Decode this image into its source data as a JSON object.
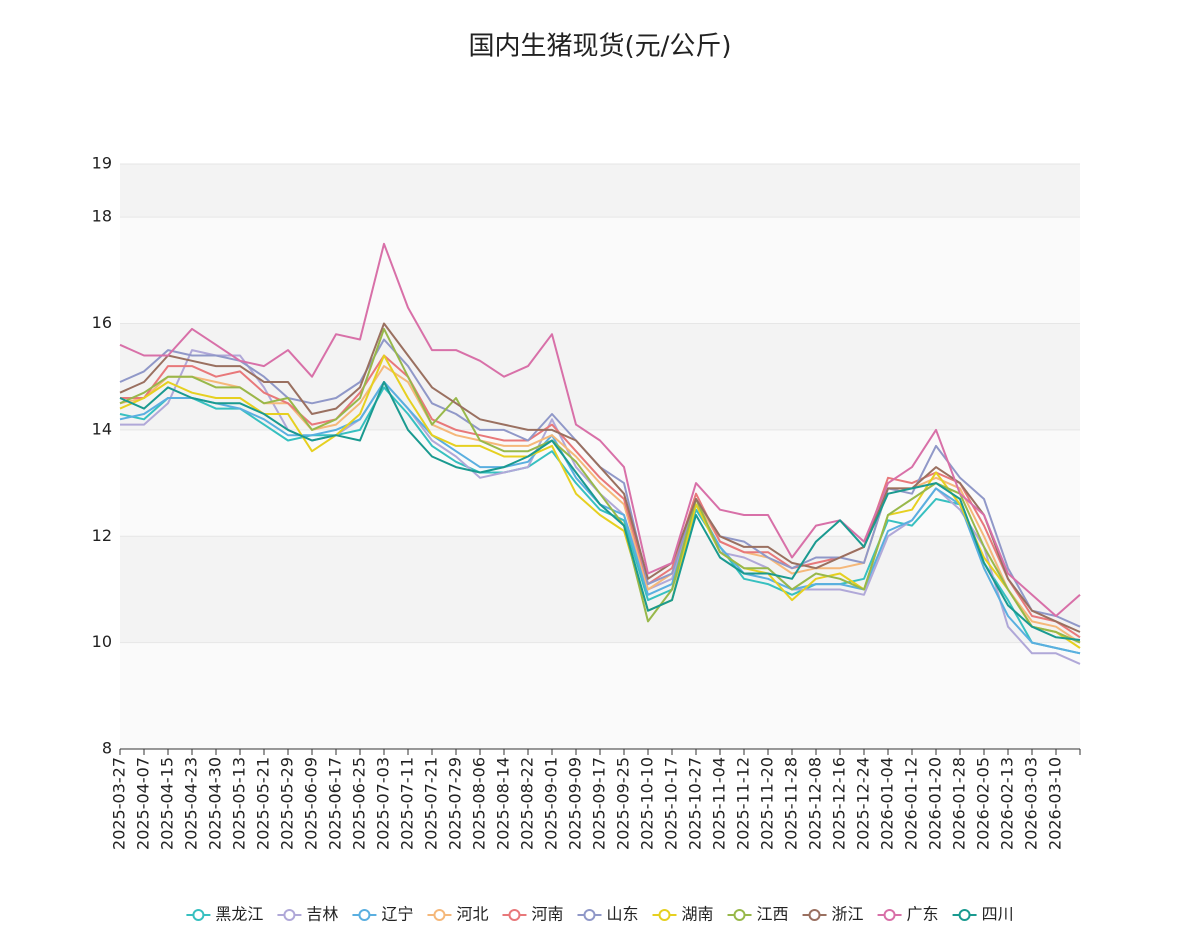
{
  "chart_data": {
    "type": "line",
    "title": "国内生猪现货(元/公斤)",
    "categories": [
      "2025-03-27",
      "2025-04-07",
      "2025-04-15",
      "2025-04-23",
      "2025-04-30",
      "2025-05-13",
      "2025-05-21",
      "2025-05-29",
      "2025-06-09",
      "2025-06-17",
      "2025-06-25",
      "2025-07-03",
      "2025-07-11",
      "2025-07-21",
      "2025-07-29",
      "2025-08-06",
      "2025-08-14",
      "2025-08-22",
      "2025-09-01",
      "2025-09-09",
      "2025-09-17",
      "2025-09-25",
      "2025-10-10",
      "2025-10-17",
      "2025-10-27",
      "2025-11-04",
      "2025-11-12",
      "2025-11-20",
      "2025-11-28",
      "2025-12-08",
      "2025-12-16",
      "2025-12-24",
      "2026-01-04",
      "2026-01-12",
      "2026-01-20",
      "2026-01-28",
      "2026-02-05",
      "2026-02-13",
      "2026-03-03",
      "2026-03-10",
      null
    ],
    "ylim": [
      8,
      19
    ],
    "yticks": [
      8,
      10,
      12,
      14,
      16,
      18,
      19
    ],
    "grid": true,
    "series": [
      {
        "name": "黑龙江",
        "color": "#37c0c0",
        "values": [
          14.3,
          14.2,
          14.6,
          14.6,
          14.4,
          14.4,
          14.1,
          13.8,
          13.9,
          13.9,
          14.0,
          14.8,
          14.3,
          13.7,
          13.4,
          13.2,
          13.2,
          13.3,
          13.6,
          13.0,
          12.5,
          12.3,
          10.8,
          11.0,
          12.5,
          11.8,
          11.2,
          11.1,
          10.9,
          11.1,
          11.1,
          11.2,
          12.3,
          12.2,
          12.7,
          12.6,
          11.5,
          10.8,
          10.0,
          9.9,
          9.8
        ]
      },
      {
        "name": "吉林",
        "color": "#b0a8d8",
        "values": [
          14.1,
          14.1,
          14.5,
          15.5,
          15.4,
          15.4,
          14.8,
          14.0,
          13.8,
          13.9,
          14.2,
          14.9,
          14.4,
          13.8,
          13.5,
          13.1,
          13.2,
          13.3,
          14.2,
          13.3,
          12.8,
          12.4,
          11.0,
          11.2,
          12.6,
          11.7,
          11.6,
          11.4,
          11.0,
          11.0,
          11.0,
          10.9,
          12.0,
          12.3,
          12.9,
          12.5,
          11.8,
          10.3,
          9.8,
          9.8,
          9.6
        ]
      },
      {
        "name": "辽宁",
        "color": "#5aafe0",
        "values": [
          14.2,
          14.3,
          14.6,
          14.6,
          14.5,
          14.4,
          14.2,
          13.9,
          13.9,
          14.0,
          14.2,
          14.9,
          14.4,
          13.9,
          13.6,
          13.3,
          13.3,
          13.4,
          13.9,
          13.1,
          12.6,
          12.4,
          10.9,
          11.1,
          12.6,
          11.8,
          11.3,
          11.2,
          11.0,
          11.1,
          11.1,
          11.0,
          12.1,
          12.3,
          12.9,
          12.6,
          11.4,
          10.5,
          10.0,
          9.9,
          9.8
        ]
      },
      {
        "name": "河北",
        "color": "#f5b87a",
        "values": [
          14.5,
          14.6,
          15.0,
          15.0,
          14.9,
          14.8,
          14.5,
          14.5,
          14.0,
          14.1,
          14.5,
          15.2,
          14.9,
          14.1,
          13.9,
          13.8,
          13.7,
          13.7,
          13.9,
          13.5,
          13.0,
          12.6,
          11.0,
          11.3,
          12.7,
          11.9,
          11.7,
          11.6,
          11.3,
          11.4,
          11.4,
          11.5,
          12.9,
          12.9,
          13.1,
          12.9,
          12.0,
          11.0,
          10.4,
          10.3,
          10.0
        ]
      },
      {
        "name": "河南",
        "color": "#e8787a",
        "values": [
          14.6,
          14.6,
          15.2,
          15.2,
          15.0,
          15.1,
          14.7,
          14.5,
          14.1,
          14.2,
          14.7,
          15.4,
          15.0,
          14.2,
          14.0,
          13.9,
          13.8,
          13.8,
          14.1,
          13.6,
          13.1,
          12.7,
          11.1,
          11.4,
          12.8,
          11.9,
          11.7,
          11.7,
          11.4,
          11.5,
          11.6,
          11.8,
          13.1,
          13.0,
          13.2,
          13.0,
          12.2,
          11.2,
          10.5,
          10.4,
          10.1
        ]
      },
      {
        "name": "山东",
        "color": "#9098c8",
        "values": [
          14.9,
          15.1,
          15.5,
          15.4,
          15.4,
          15.3,
          15.0,
          14.6,
          14.5,
          14.6,
          14.9,
          15.7,
          15.2,
          14.5,
          14.3,
          14.0,
          14.0,
          13.8,
          14.3,
          13.8,
          13.3,
          13.0,
          11.1,
          11.3,
          12.7,
          12.0,
          11.9,
          11.6,
          11.4,
          11.6,
          11.6,
          11.5,
          12.9,
          12.8,
          13.7,
          13.1,
          12.7,
          11.4,
          10.6,
          10.5,
          10.3
        ]
      },
      {
        "name": "湖南",
        "color": "#e6d020",
        "values": [
          14.4,
          14.6,
          14.9,
          14.7,
          14.6,
          14.6,
          14.3,
          14.3,
          13.6,
          13.9,
          14.3,
          15.4,
          14.6,
          13.9,
          13.7,
          13.7,
          13.5,
          13.5,
          13.7,
          12.8,
          12.4,
          12.1,
          10.6,
          10.8,
          12.6,
          11.7,
          11.4,
          11.3,
          10.8,
          11.2,
          11.3,
          11.0,
          12.4,
          12.5,
          13.2,
          12.6,
          11.6,
          11.0,
          10.3,
          10.2,
          9.9
        ]
      },
      {
        "name": "江西",
        "color": "#98b84a",
        "values": [
          14.5,
          14.7,
          15.0,
          15.0,
          14.8,
          14.8,
          14.5,
          14.6,
          14.0,
          14.2,
          14.6,
          15.9,
          15.0,
          14.1,
          14.6,
          13.8,
          13.6,
          13.6,
          13.8,
          13.4,
          12.8,
          12.2,
          10.4,
          11.0,
          12.7,
          11.7,
          11.4,
          11.4,
          11.0,
          11.3,
          11.2,
          11.0,
          12.4,
          12.7,
          13.0,
          12.8,
          11.8,
          11.0,
          10.3,
          10.2,
          10.0
        ]
      },
      {
        "name": "浙江",
        "color": "#9a7060",
        "values": [
          14.7,
          14.9,
          15.4,
          15.3,
          15.2,
          15.2,
          14.9,
          14.9,
          14.3,
          14.4,
          14.8,
          16.0,
          15.4,
          14.8,
          14.5,
          14.2,
          14.1,
          14.0,
          14.0,
          13.8,
          13.3,
          12.8,
          11.2,
          11.5,
          12.7,
          12.0,
          11.8,
          11.8,
          11.5,
          11.4,
          11.6,
          11.8,
          12.9,
          12.9,
          13.3,
          13.0,
          12.4,
          11.2,
          10.6,
          10.4,
          10.2
        ]
      },
      {
        "name": "广东",
        "color": "#d870a8",
        "values": [
          15.6,
          15.4,
          15.4,
          15.9,
          15.6,
          15.3,
          15.2,
          15.5,
          15.0,
          15.8,
          15.7,
          17.5,
          16.3,
          15.5,
          15.5,
          15.3,
          15.0,
          15.2,
          15.8,
          14.1,
          13.8,
          13.3,
          11.3,
          11.5,
          13.0,
          12.5,
          12.4,
          12.4,
          11.6,
          12.2,
          12.3,
          11.9,
          13.0,
          13.3,
          14.0,
          12.8,
          12.4,
          11.3,
          10.9,
          10.5,
          10.9
        ]
      },
      {
        "name": "四川",
        "color": "#1a9a90",
        "values": [
          14.6,
          14.4,
          14.8,
          14.6,
          14.5,
          14.5,
          14.3,
          14.0,
          13.8,
          13.9,
          13.8,
          14.9,
          14.0,
          13.5,
          13.3,
          13.2,
          13.3,
          13.5,
          13.8,
          13.2,
          12.6,
          12.2,
          10.6,
          10.8,
          12.4,
          11.6,
          11.3,
          11.3,
          11.2,
          11.9,
          12.3,
          11.8,
          12.8,
          12.9,
          13.0,
          12.7,
          11.5,
          10.7,
          10.3,
          10.1,
          10.05
        ]
      }
    ]
  }
}
